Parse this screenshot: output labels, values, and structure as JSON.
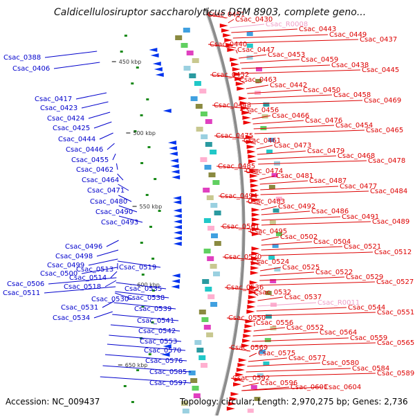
{
  "title": "Caldicellulosiruptor saccharolyticus DSM 8903, complete geno...",
  "footer": {
    "accession": "Accession: NC_009437",
    "topology": "Topology: circular; Length: 2,970,275 bp; Genes: 2,736"
  },
  "colors": {
    "backbone": "#8c8c8c",
    "left_labels": "#0000cc",
    "right_labels": "#dd0000",
    "rna_labels": "#f0a0c8",
    "forward_arrows": "#ee0000",
    "reverse_arrows": "#0033ee"
  },
  "scale_marks": [
    "450 kbp",
    "500 kbp",
    "550 kbp",
    "600 kbp",
    "650 kbp"
  ],
  "left_labels": [
    "Csac_0388",
    "Csac_0406",
    "Csac_0417",
    "Csac_0423",
    "Csac_0424",
    "Csac_0425",
    "Csac_0444",
    "Csac_0446",
    "Csac_0455",
    "Csac_0462",
    "Csac_0464",
    "Csac_0471",
    "Csac_0480",
    "Csac_0490",
    "Csac_0493",
    "Csac_0496",
    "Csac_0498",
    "Csac_0499",
    "Csac_0500",
    "Csac_0506",
    "Csac_0511",
    "Csac_0513",
    "Csac_0514",
    "Csac_0518",
    "Csac_0519",
    "Csac_0530",
    "Csac_0531",
    "Csac_0534",
    "Csac_0535",
    "Csac_0538",
    "Csac_0539",
    "Csac_0541",
    "Csac_0542",
    "Csac_0553",
    "Csac_0570",
    "Csac_0576",
    "Csac_0585",
    "Csac_0597"
  ],
  "right_labels": [
    "Csac_0451",
    "Csac_0430",
    "Csac_R0008",
    "Csac_0443",
    "Csac_0449",
    "Csac_0437",
    "Csac_0440",
    "Csac_0447",
    "Csac_0453",
    "Csac_0459",
    "Csac_0438",
    "Csac_0445",
    "Csac_0452",
    "Csac_0463",
    "Csac_0442",
    "Csac_0450",
    "Csac_0458",
    "Csac_0469",
    "Csac_0448",
    "Csac_0456",
    "Csac_0466",
    "Csac_0476",
    "Csac_0454",
    "Csac_0465",
    "Csac_0475",
    "Csac_0461",
    "Csac_0473",
    "Csac_0479",
    "Csac_0468",
    "Csac_0478",
    "Csac_0485",
    "Csac_0474",
    "Csac_0481",
    "Csac_0487",
    "Csac_0477",
    "Csac_0484",
    "Csac_0494",
    "Csac_0483",
    "Csac_0492",
    "Csac_0486",
    "Csac_0491",
    "Csac_0489",
    "Csac_0501",
    "Csac_0495",
    "Csac_0502",
    "Csac_0504",
    "Csac_0521",
    "Csac_0512",
    "Csac_0520",
    "Csac_0524",
    "Csac_0525",
    "Csac_0522",
    "Csac_0529",
    "Csac_0527",
    "Csac_0536",
    "Csac_0532",
    "Csac_0537",
    "Csac_R0011",
    "Csac_0544",
    "Csac_0551",
    "Csac_0550",
    "Csac_0556",
    "Csac_0552",
    "Csac_0564",
    "Csac_0559",
    "Csac_0565",
    "Csac_0569",
    "Csac_0575",
    "Csac_0577",
    "Csac_0580",
    "Csac_0584",
    "Csac_0589",
    "Csac_0592",
    "Csac_0596",
    "Csac_0601",
    "Csac_0604"
  ],
  "rna_labels": [
    "Csac_R0008",
    "Csac_R0011"
  ]
}
